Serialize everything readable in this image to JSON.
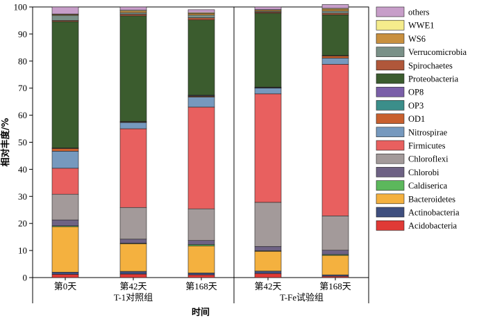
{
  "chart_data": {
    "type": "bar",
    "stacked": true,
    "ylabel": "相对丰度/%",
    "xlabel": "时间",
    "ylim": [
      0,
      100
    ],
    "yticks": [
      "0",
      "10",
      "20",
      "30",
      "40",
      "50",
      "60",
      "70",
      "80",
      "90",
      "100"
    ],
    "categories": [
      "第0天",
      "第42天",
      "第168天",
      "第42天",
      "第168天"
    ],
    "groups": [
      {
        "label": "T-1对照组",
        "span": [
          0,
          2
        ]
      },
      {
        "label": "T-Fe试验组",
        "span": [
          3,
          4
        ]
      }
    ],
    "legend_position": "right",
    "series": [
      {
        "name": "Acidobacteria",
        "color": "#e03a36",
        "values": [
          1.2,
          1.3,
          1.0,
          1.5,
          0.5
        ]
      },
      {
        "name": "Actinobacteria",
        "color": "#3f4f7f",
        "values": [
          0.8,
          1.0,
          0.7,
          0.9,
          0.5
        ]
      },
      {
        "name": "Bacteroidetes",
        "color": "#f4b13f",
        "values": [
          16.8,
          10.2,
          10.0,
          7.3,
          7.2
        ]
      },
      {
        "name": "Caldiserica",
        "color": "#5cb85c",
        "values": [
          0.3,
          0.2,
          0.5,
          0.2,
          0.3
        ]
      },
      {
        "name": "Chlorobi",
        "color": "#6e6284",
        "values": [
          2.2,
          1.5,
          1.5,
          1.6,
          1.6
        ]
      },
      {
        "name": "Chloroflexi",
        "color": "#a39a9a",
        "values": [
          9.5,
          11.7,
          11.7,
          16.3,
          12.7
        ]
      },
      {
        "name": "Firmicutes",
        "color": "#e8605f",
        "values": [
          9.6,
          29.1,
          37.6,
          40.1,
          56.0
        ]
      },
      {
        "name": "Nitrospirae",
        "color": "#7699be",
        "values": [
          6.3,
          2.3,
          3.7,
          2.1,
          2.3
        ]
      },
      {
        "name": "OD1",
        "color": "#c9602e",
        "values": [
          1.0,
          0.2,
          0.3,
          0.1,
          0.8
        ]
      },
      {
        "name": "OP3",
        "color": "#3b8e8a",
        "values": [
          0.1,
          0.1,
          0.2,
          0.1,
          0.1
        ]
      },
      {
        "name": "OP8",
        "color": "#7a5fa8",
        "values": [
          0.1,
          0.1,
          0.2,
          0.2,
          0.1
        ]
      },
      {
        "name": "Proteobacteria",
        "color": "#3b5c2e",
        "values": [
          46.7,
          39.0,
          27.8,
          27.3,
          15.0
        ]
      },
      {
        "name": "Spirochaetes",
        "color": "#b0573a",
        "values": [
          0.4,
          0.6,
          0.8,
          0.4,
          0.6
        ]
      },
      {
        "name": "Verrucomicrobia",
        "color": "#7a9188",
        "values": [
          1.9,
          0.6,
          1.0,
          0.3,
          0.8
        ]
      },
      {
        "name": "WS6",
        "color": "#c9903f",
        "values": [
          0.3,
          0.6,
          0.6,
          0.4,
          0.7
        ]
      },
      {
        "name": "WWE1",
        "color": "#f5ec8c",
        "values": [
          0.2,
          0.3,
          0.3,
          0.2,
          0.3
        ]
      },
      {
        "name": "others",
        "color": "#c79ec9",
        "values": [
          2.6,
          1.2,
          1.1,
          1.0,
          1.4
        ]
      }
    ]
  }
}
